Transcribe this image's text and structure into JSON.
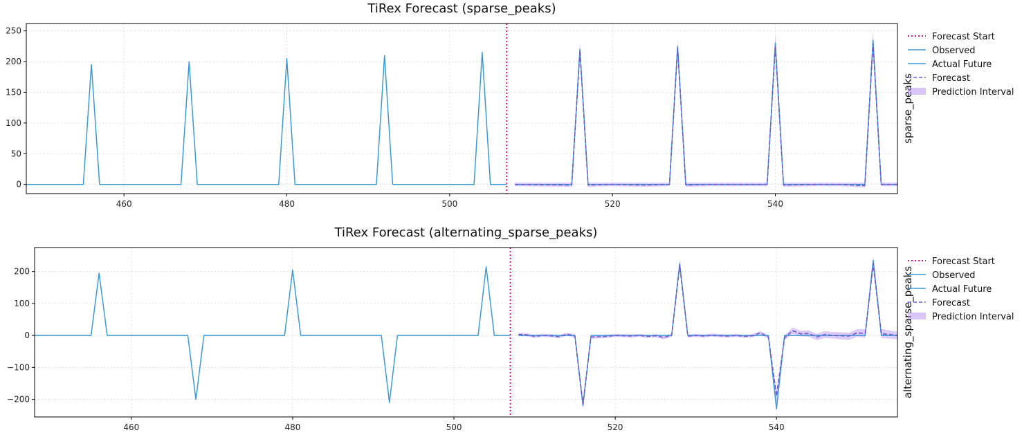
{
  "chart_data": [
    {
      "type": "line",
      "title": "TiRex Forecast (sparse_peaks)",
      "xlabel": "",
      "ylabel": "sparse_peaks",
      "xlim": [
        448,
        555
      ],
      "ylim": [
        -15,
        262
      ],
      "xticks": [
        460,
        480,
        500,
        520,
        540
      ],
      "yticks": [
        0,
        50,
        100,
        150,
        200,
        250
      ],
      "grid": true,
      "legend_position": "outside-right",
      "forecast_start": 507,
      "legend": [
        "Forecast Start",
        "Observed",
        "Actual Future",
        "Forecast",
        "Prediction Interval"
      ],
      "colors": {
        "observed": "#3a9ad9",
        "actual_future": "#3a9ad9",
        "forecast": "#6a5acd",
        "interval": "#b48ef0",
        "forecast_start": "#e0138c"
      },
      "series": [
        {
          "name": "Observed",
          "x": [
            448,
            455,
            456,
            457,
            467,
            468,
            469,
            479,
            480,
            481,
            491,
            492,
            493,
            503,
            504,
            505,
            507
          ],
          "values": [
            0,
            0,
            195,
            0,
            0,
            200,
            0,
            0,
            205,
            0,
            0,
            210,
            0,
            0,
            215,
            0,
            0
          ]
        },
        {
          "name": "Actual Future",
          "x": [
            508,
            515,
            516,
            517,
            527,
            528,
            529,
            539,
            540,
            541,
            551,
            552,
            553,
            555
          ],
          "values": [
            0,
            0,
            220,
            0,
            0,
            225,
            0,
            0,
            230,
            0,
            0,
            235,
            0,
            0
          ]
        },
        {
          "name": "Forecast",
          "x": [
            508,
            515,
            516,
            517,
            520,
            524,
            527,
            528,
            529,
            532,
            536,
            539,
            540,
            541,
            545,
            548,
            551,
            552,
            553,
            555
          ],
          "values": [
            0,
            -1,
            218,
            -1,
            0,
            -1,
            0,
            222,
            -1,
            0,
            0,
            0,
            226,
            -1,
            0,
            0,
            -2,
            230,
            0,
            0
          ]
        },
        {
          "name": "Prediction Interval",
          "x": [
            508,
            515,
            516,
            517,
            520,
            524,
            527,
            528,
            529,
            532,
            536,
            539,
            540,
            541,
            545,
            548,
            551,
            552,
            553,
            555
          ],
          "lower": [
            -3,
            -4,
            205,
            -4,
            -3,
            -4,
            -3,
            210,
            -4,
            -3,
            -3,
            -3,
            213,
            -4,
            -3,
            -3,
            -5,
            217,
            -3,
            -3
          ],
          "upper": [
            3,
            3,
            232,
            3,
            3,
            3,
            3,
            236,
            3,
            3,
            3,
            3,
            245,
            3,
            3,
            3,
            3,
            250,
            3,
            3
          ]
        }
      ]
    },
    {
      "type": "line",
      "title": "TiRex Forecast (alternating_sparse_peaks)",
      "xlabel": "",
      "ylabel": "alternating_sparse_peaks",
      "xlim": [
        448,
        555
      ],
      "ylim": [
        -255,
        275
      ],
      "xticks": [
        460,
        480,
        500,
        520,
        540
      ],
      "yticks": [
        -200,
        -100,
        0,
        100,
        200
      ],
      "grid": true,
      "legend_position": "outside-right",
      "forecast_start": 507,
      "legend": [
        "Forecast Start",
        "Observed",
        "Actual Future",
        "Forecast",
        "Prediction Interval"
      ],
      "colors": {
        "observed": "#3a9ad9",
        "actual_future": "#3a9ad9",
        "forecast": "#6a5acd",
        "interval": "#b48ef0",
        "forecast_start": "#e0138c"
      },
      "series": [
        {
          "name": "Observed",
          "x": [
            448,
            455,
            456,
            457,
            467,
            468,
            469,
            479,
            480,
            481,
            491,
            492,
            493,
            503,
            504,
            505,
            507
          ],
          "values": [
            0,
            0,
            195,
            0,
            0,
            -200,
            0,
            0,
            205,
            0,
            0,
            -210,
            0,
            0,
            215,
            0,
            0
          ]
        },
        {
          "name": "Actual Future",
          "x": [
            508,
            515,
            516,
            517,
            527,
            528,
            529,
            539,
            540,
            541,
            551,
            552,
            553,
            555
          ],
          "values": [
            0,
            0,
            -220,
            0,
            0,
            225,
            0,
            0,
            -230,
            0,
            0,
            235,
            0,
            0
          ]
        },
        {
          "name": "Forecast",
          "x": [
            508,
            509,
            510,
            511,
            512,
            513,
            514,
            515,
            516,
            517,
            518,
            519,
            520,
            521,
            522,
            523,
            524,
            525,
            526,
            527,
            528,
            529,
            530,
            531,
            532,
            533,
            534,
            535,
            536,
            537,
            538,
            539,
            540,
            541,
            542,
            543,
            544,
            545,
            546,
            547,
            548,
            549,
            550,
            551,
            552,
            553,
            554,
            555
          ],
          "values": [
            3,
            2,
            -3,
            0,
            -1,
            -4,
            4,
            -2,
            -215,
            -5,
            -4,
            -3,
            0,
            -1,
            -2,
            0,
            -3,
            -1,
            -6,
            0,
            220,
            -2,
            0,
            -2,
            1,
            -1,
            -2,
            0,
            -3,
            -1,
            8,
            -5,
            -190,
            -8,
            15,
            5,
            6,
            -5,
            3,
            0,
            -1,
            -2,
            8,
            6,
            225,
            5,
            3,
            0
          ]
        },
        {
          "name": "Prediction Interval",
          "x": [
            508,
            509,
            510,
            511,
            512,
            513,
            514,
            515,
            516,
            517,
            518,
            519,
            520,
            521,
            522,
            523,
            524,
            525,
            526,
            527,
            528,
            529,
            530,
            531,
            532,
            533,
            534,
            535,
            536,
            537,
            538,
            539,
            540,
            541,
            542,
            543,
            544,
            545,
            546,
            547,
            548,
            549,
            550,
            551,
            552,
            553,
            554,
            555
          ],
          "lower": [
            -2,
            -3,
            -8,
            -5,
            -6,
            -9,
            -1,
            -7,
            -225,
            -10,
            -9,
            -8,
            -5,
            -6,
            -7,
            -5,
            -8,
            -6,
            -12,
            -5,
            205,
            -7,
            -5,
            -7,
            -4,
            -6,
            -7,
            -5,
            -8,
            -6,
            2,
            -10,
            -215,
            -15,
            5,
            -3,
            -4,
            -15,
            -8,
            -10,
            -12,
            -14,
            -4,
            -8,
            205,
            -8,
            -10,
            -12
          ],
          "upper": [
            8,
            7,
            2,
            5,
            4,
            1,
            9,
            3,
            -205,
            0,
            1,
            2,
            5,
            4,
            3,
            5,
            2,
            4,
            0,
            5,
            240,
            3,
            5,
            3,
            6,
            4,
            3,
            5,
            2,
            4,
            14,
            0,
            -170,
            0,
            25,
            15,
            16,
            5,
            14,
            11,
            10,
            9,
            20,
            20,
            248,
            20,
            16,
            12
          ]
        }
      ]
    }
  ]
}
